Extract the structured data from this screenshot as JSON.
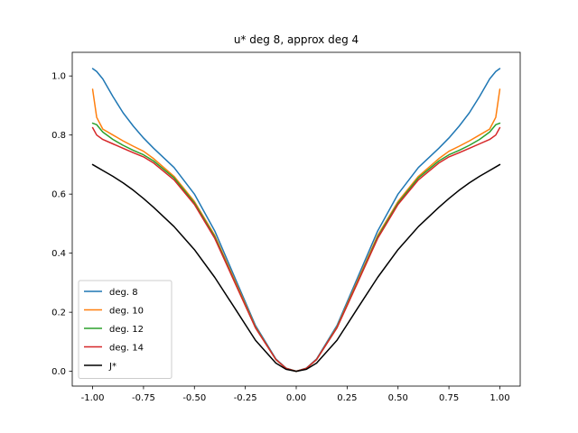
{
  "chart_data": {
    "type": "line",
    "title": "u* deg 8, approx deg 4",
    "xlabel": "",
    "ylabel": "",
    "xlim": [
      -1.1,
      1.1
    ],
    "ylim": [
      -0.05,
      1.08
    ],
    "x_ticks": [
      -1.0,
      -0.75,
      -0.5,
      -0.25,
      0.0,
      0.25,
      0.5,
      0.75,
      1.0
    ],
    "x_tick_labels": [
      "-1.00",
      "-0.75",
      "-0.50",
      "-0.25",
      "0.00",
      "0.25",
      "0.50",
      "0.75",
      "1.00"
    ],
    "y_ticks": [
      0.0,
      0.2,
      0.4,
      0.6,
      0.8,
      1.0
    ],
    "y_tick_labels": [
      "0.0",
      "0.2",
      "0.4",
      "0.6",
      "0.8",
      "1.0"
    ],
    "grid": false,
    "legend_position": "lower-left",
    "x": [
      -1.0,
      -0.98,
      -0.95,
      -0.9,
      -0.85,
      -0.8,
      -0.75,
      -0.7,
      -0.6,
      -0.5,
      -0.4,
      -0.3,
      -0.2,
      -0.1,
      -0.05,
      0.0,
      0.05,
      0.1,
      0.2,
      0.3,
      0.4,
      0.5,
      0.6,
      0.7,
      0.75,
      0.8,
      0.85,
      0.9,
      0.95,
      0.98,
      1.0
    ],
    "series": [
      {
        "name": "deg. 8",
        "color": "#1f77b4",
        "values": [
          1.025,
          1.015,
          0.99,
          0.93,
          0.875,
          0.83,
          0.79,
          0.755,
          0.69,
          0.6,
          0.475,
          0.315,
          0.155,
          0.042,
          0.011,
          0.0,
          0.011,
          0.042,
          0.155,
          0.315,
          0.475,
          0.6,
          0.69,
          0.755,
          0.79,
          0.83,
          0.875,
          0.93,
          0.99,
          1.015,
          1.025
        ]
      },
      {
        "name": "deg. 10",
        "color": "#ff7f0e",
        "values": [
          0.955,
          0.86,
          0.82,
          0.8,
          0.78,
          0.762,
          0.745,
          0.72,
          0.66,
          0.575,
          0.46,
          0.305,
          0.15,
          0.04,
          0.01,
          0.0,
          0.01,
          0.04,
          0.15,
          0.305,
          0.46,
          0.575,
          0.66,
          0.72,
          0.745,
          0.762,
          0.78,
          0.8,
          0.82,
          0.86,
          0.955
        ]
      },
      {
        "name": "deg. 12",
        "color": "#2ca02c",
        "values": [
          0.84,
          0.835,
          0.81,
          0.785,
          0.765,
          0.748,
          0.733,
          0.712,
          0.655,
          0.57,
          0.455,
          0.3,
          0.148,
          0.04,
          0.01,
          0.0,
          0.01,
          0.04,
          0.148,
          0.3,
          0.455,
          0.57,
          0.655,
          0.712,
          0.733,
          0.748,
          0.765,
          0.785,
          0.81,
          0.835,
          0.84
        ]
      },
      {
        "name": "deg. 14",
        "color": "#d62728",
        "values": [
          0.825,
          0.8,
          0.785,
          0.77,
          0.755,
          0.74,
          0.726,
          0.705,
          0.648,
          0.565,
          0.45,
          0.298,
          0.147,
          0.04,
          0.01,
          0.0,
          0.01,
          0.04,
          0.147,
          0.298,
          0.45,
          0.565,
          0.648,
          0.705,
          0.726,
          0.74,
          0.755,
          0.77,
          0.785,
          0.8,
          0.825
        ]
      },
      {
        "name": "J*",
        "color": "#000000",
        "values": [
          0.7,
          0.692,
          0.68,
          0.66,
          0.638,
          0.613,
          0.585,
          0.555,
          0.49,
          0.412,
          0.318,
          0.212,
          0.105,
          0.028,
          0.007,
          0.0,
          0.007,
          0.028,
          0.105,
          0.212,
          0.318,
          0.412,
          0.49,
          0.555,
          0.585,
          0.613,
          0.638,
          0.66,
          0.68,
          0.692,
          0.7
        ]
      }
    ]
  }
}
